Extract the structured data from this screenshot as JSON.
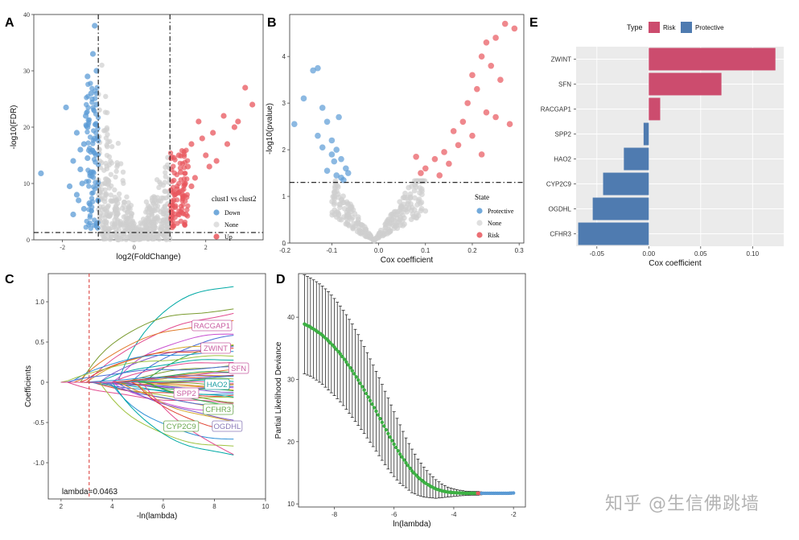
{
  "watermark": "知乎 @生信佛跳墙",
  "chart_data": [
    {
      "panel": "A",
      "type": "scatter",
      "title": "",
      "xlabel": "log2(FoldChange)",
      "ylabel": "-log10(FDR)",
      "xlim": [
        -2.8,
        3.6
      ],
      "ylim": [
        0,
        40
      ],
      "xticks": [
        "-2",
        "0",
        "2"
      ],
      "xtick_values": [
        -2,
        0,
        2
      ],
      "yticks": [
        "0",
        "10",
        "20",
        "30",
        "40"
      ],
      "ytick_values": [
        0,
        10,
        20,
        30,
        40
      ],
      "vlines": [
        -1,
        1
      ],
      "hline": 1.3,
      "legend": {
        "title": "clust1 vs clust2",
        "entries": [
          "Down",
          "None",
          "Up"
        ],
        "colors": [
          "#5b9bd5",
          "#d9d9d9",
          "#e8565c"
        ],
        "position": "right"
      },
      "series": [
        {
          "name": "Down",
          "points": [
            [
              -2.6,
              11.8
            ],
            [
              -1.9,
              23.5
            ],
            [
              -1.5,
              12.5
            ],
            [
              -1.6,
              8
            ],
            [
              -1.4,
              17
            ],
            [
              -1.3,
              14.5
            ],
            [
              -1.2,
              26
            ],
            [
              -1.1,
              38
            ],
            [
              -1.05,
              30
            ],
            [
              -1.3,
              20
            ],
            [
              -1.7,
              14
            ],
            [
              -1.8,
              9.5
            ],
            [
              -1.45,
              10
            ],
            [
              -1.25,
              6.5
            ],
            [
              -1.15,
              33
            ],
            [
              -1.5,
              16
            ],
            [
              -1.35,
              22
            ],
            [
              -1.6,
              19
            ],
            [
              -1.1,
              18
            ],
            [
              -1.2,
              12
            ],
            [
              -1.4,
              5.5
            ],
            [
              -1.7,
              4.5
            ],
            [
              -1.05,
              24
            ],
            [
              -1.3,
              29
            ],
            [
              -1.55,
              7
            ]
          ]
        },
        {
          "name": "Up",
          "points": [
            [
              3.3,
              24
            ],
            [
              2.8,
              20
            ],
            [
              2.5,
              22
            ],
            [
              2.2,
              19
            ],
            [
              3.1,
              27
            ],
            [
              1.8,
              21
            ],
            [
              1.6,
              17
            ],
            [
              2.0,
              15
            ],
            [
              1.5,
              13
            ],
            [
              1.3,
              12
            ],
            [
              1.2,
              9
            ],
            [
              1.1,
              7
            ],
            [
              1.4,
              10
            ],
            [
              1.7,
              11
            ],
            [
              2.3,
              14
            ],
            [
              2.6,
              17
            ],
            [
              1.9,
              18
            ],
            [
              1.25,
              15
            ],
            [
              1.15,
              6
            ],
            [
              1.35,
              8
            ],
            [
              1.05,
              5.5
            ],
            [
              2.1,
              13
            ],
            [
              1.45,
              4.5
            ],
            [
              2.9,
              21
            ],
            [
              1.6,
              9.5
            ]
          ]
        }
      ]
    },
    {
      "panel": "B",
      "type": "scatter",
      "title": "",
      "xlabel": "Cox coefficient",
      "ylabel": "-log10(pvalue)",
      "xlim": [
        -0.19,
        0.31
      ],
      "ylim": [
        0,
        4.9
      ],
      "xticks": [
        "-0.2",
        "-0.1",
        "0.0",
        "0.1",
        "0.2",
        "0.3"
      ],
      "xtick_values": [
        -0.2,
        -0.1,
        0.0,
        0.1,
        0.2,
        0.3
      ],
      "yticks": [
        "0",
        "1",
        "2",
        "3",
        "4"
      ],
      "ytick_values": [
        0,
        1,
        2,
        3,
        4
      ],
      "hline": 1.3,
      "legend": {
        "title": "State",
        "entries": [
          "Protective",
          "None",
          "Risk"
        ],
        "colors": [
          "#5b9bd5",
          "#d9d9d9",
          "#e8565c"
        ],
        "position": "bottom-right"
      },
      "series": [
        {
          "name": "Protective",
          "points": [
            [
              -0.18,
              2.55
            ],
            [
              -0.16,
              3.1
            ],
            [
              -0.14,
              3.7
            ],
            [
              -0.13,
              3.75
            ],
            [
              -0.12,
              2.9
            ],
            [
              -0.11,
              2.6
            ],
            [
              -0.1,
              2.2
            ],
            [
              -0.09,
              2.0
            ],
            [
              -0.08,
              1.8
            ],
            [
              -0.07,
              1.6
            ],
            [
              -0.11,
              1.55
            ],
            [
              -0.09,
              1.45
            ],
            [
              -0.08,
              1.4
            ],
            [
              -0.1,
              1.9
            ],
            [
              -0.13,
              2.3
            ],
            [
              -0.085,
              2.7
            ],
            [
              -0.075,
              1.35
            ],
            [
              -0.095,
              1.75
            ],
            [
              -0.12,
              2.05
            ],
            [
              -0.065,
              1.5
            ]
          ]
        },
        {
          "name": "Risk",
          "points": [
            [
              0.27,
              4.7
            ],
            [
              0.29,
              4.6
            ],
            [
              0.25,
              4.4
            ],
            [
              0.23,
              4.3
            ],
            [
              0.22,
              4.0
            ],
            [
              0.2,
              3.6
            ],
            [
              0.24,
              3.8
            ],
            [
              0.21,
              3.3
            ],
            [
              0.19,
              3.0
            ],
            [
              0.23,
              2.8
            ],
            [
              0.18,
              2.6
            ],
            [
              0.16,
              2.4
            ],
            [
              0.17,
              2.1
            ],
            [
              0.14,
              1.95
            ],
            [
              0.12,
              1.8
            ],
            [
              0.1,
              1.6
            ],
            [
              0.09,
              1.5
            ],
            [
              0.15,
              1.7
            ],
            [
              0.2,
              2.3
            ],
            [
              0.25,
              2.7
            ],
            [
              0.28,
              2.55
            ],
            [
              0.22,
              1.9
            ],
            [
              0.13,
              1.45
            ],
            [
              0.08,
              1.85
            ],
            [
              0.26,
              3.5
            ]
          ]
        }
      ]
    },
    {
      "panel": "C",
      "type": "line",
      "title": "",
      "xlabel": "-ln(lambda)",
      "ylabel": "Coefficients",
      "xlim": [
        1.5,
        10
      ],
      "ylim": [
        -1.45,
        1.35
      ],
      "xticks": [
        "2",
        "4",
        "6",
        "8",
        "10"
      ],
      "xtick_values": [
        2,
        4,
        6,
        8,
        10
      ],
      "yticks": [
        "-1.0",
        "-0.5",
        "0",
        "0.5",
        "1.0"
      ],
      "ytick_values": [
        -1.0,
        -0.5,
        0,
        0.5,
        1.0
      ],
      "vline": 3.1,
      "annotation": "lambda=0.0463",
      "end_values": [
        1.27,
        1.02,
        0.93,
        0.82,
        0.71,
        0.64,
        0.57,
        0.51,
        0.47,
        0.42,
        0.38,
        0.35,
        0.31,
        0.28,
        0.25,
        0.22,
        0.19,
        0.17,
        0.15,
        0.12,
        0.1,
        0.08,
        0.06,
        0.04,
        0.02,
        0.0,
        -0.02,
        -0.04,
        -0.07,
        -0.09,
        -0.11,
        -0.13,
        -0.15,
        -0.17,
        -0.19,
        -0.21,
        -0.24,
        -0.27,
        -0.3,
        -0.33,
        -0.37,
        -0.42,
        -0.47,
        -0.53,
        -0.6,
        -0.68,
        -0.77,
        -0.85,
        -1.0,
        -1.32
      ],
      "labels": [
        {
          "text": "RACGAP1",
          "x": 7.9,
          "y": 0.7,
          "color": "#c95fa2"
        },
        {
          "text": "ZWINT",
          "x": 8.05,
          "y": 0.42,
          "color": "#c95fa2"
        },
        {
          "text": "SFN",
          "x": 8.95,
          "y": 0.17,
          "color": "#c95fa2"
        },
        {
          "text": "HAO2",
          "x": 8.1,
          "y": -0.03,
          "color": "#1f9fa5"
        },
        {
          "text": "SPP2",
          "x": 6.9,
          "y": -0.14,
          "color": "#c95fa2"
        },
        {
          "text": "CFHR3",
          "x": 8.15,
          "y": -0.34,
          "color": "#6aa84f"
        },
        {
          "text": "CYP2C9",
          "x": 6.7,
          "y": -0.55,
          "color": "#6aa84f"
        },
        {
          "text": "OGDHL",
          "x": 8.5,
          "y": -0.55,
          "color": "#8a7ab8"
        }
      ]
    },
    {
      "panel": "D",
      "type": "line",
      "title": "",
      "xlabel": "ln(lambda)",
      "ylabel": "Partial Likelihood Deviance",
      "xlim": [
        -9.2,
        -1.6
      ],
      "ylim": [
        9.5,
        47
      ],
      "xticks": [
        "-8",
        "-6",
        "-4",
        "-2"
      ],
      "xtick_values": [
        -8,
        -6,
        -4,
        -2
      ],
      "yticks": [
        "10",
        "20",
        "30",
        "40"
      ],
      "ytick_values": [
        10,
        20,
        30,
        40
      ],
      "x": [
        -9.0,
        -8.8,
        -8.6,
        -8.4,
        -8.2,
        -8.0,
        -7.8,
        -7.6,
        -7.4,
        -7.2,
        -7.0,
        -6.8,
        -6.6,
        -6.4,
        -6.2,
        -6.0,
        -5.8,
        -5.6,
        -5.4,
        -5.2,
        -5.0,
        -4.8,
        -4.6,
        -4.4,
        -4.2,
        -4.0,
        -3.8,
        -3.6,
        -3.4,
        -3.2,
        -3.0,
        -2.8,
        -2.6,
        -2.4,
        -2.2,
        -2.0
      ],
      "y": [
        38.9,
        38.4,
        37.8,
        37.1,
        36.2,
        35.2,
        34.1,
        32.8,
        31.4,
        29.9,
        28.3,
        26.6,
        24.9,
        23.1,
        21.3,
        19.6,
        18.0,
        16.6,
        15.3,
        14.3,
        13.5,
        12.9,
        12.4,
        12.1,
        11.9,
        11.8,
        11.75,
        11.7,
        11.7,
        11.7,
        11.7,
        11.7,
        11.7,
        11.7,
        11.7,
        11.75
      ],
      "err_hi": [
        46.8,
        46.3,
        45.7,
        45.0,
        44.1,
        43.0,
        41.8,
        40.4,
        38.9,
        37.2,
        35.3,
        33.3,
        31.3,
        29.2,
        27.0,
        24.8,
        22.7,
        20.6,
        18.8,
        17.2,
        15.9,
        14.8,
        13.9,
        13.2,
        12.7,
        12.4,
        12.2,
        12.05,
        12.0,
        12.0,
        11.9,
        11.9,
        11.9,
        11.9,
        11.9,
        11.95
      ],
      "err_lo": [
        30.9,
        30.5,
        29.9,
        29.2,
        28.3,
        27.4,
        26.4,
        25.2,
        23.9,
        22.6,
        21.3,
        19.9,
        18.5,
        17.0,
        15.6,
        14.4,
        13.3,
        12.6,
        11.8,
        11.4,
        11.1,
        11.0,
        10.9,
        11.0,
        11.1,
        11.2,
        11.3,
        11.35,
        11.4,
        11.4,
        11.5,
        11.5,
        11.5,
        11.5,
        11.5,
        11.55
      ],
      "point_colors": {
        "path": "#3cb043",
        "min": "#e8565c",
        "tail": "#5b9bd5"
      }
    },
    {
      "panel": "E",
      "type": "bar",
      "title": "",
      "xlabel": "Cox coefficient",
      "ylabel": "",
      "xlim": [
        -0.07,
        0.13
      ],
      "xticks": [
        "-0.05",
        "0.00",
        "0.05",
        "0.10"
      ],
      "xtick_values": [
        -0.05,
        0.0,
        0.05,
        0.1
      ],
      "categories": [
        "ZWINT",
        "SFN",
        "RACGAP1",
        "SPP2",
        "HAO2",
        "CYP2C9",
        "OGDHL",
        "CFHR3"
      ],
      "values": [
        0.122,
        0.07,
        0.011,
        -0.005,
        -0.024,
        -0.044,
        -0.054,
        -0.068
      ],
      "types": [
        "Risk",
        "Risk",
        "Risk",
        "Protective",
        "Protective",
        "Protective",
        "Protective",
        "Protective"
      ],
      "legend": {
        "title": "Type",
        "entries": [
          "Risk",
          "Protective"
        ],
        "colors": [
          "#cc4c6e",
          "#4f7bb0"
        ],
        "position": "top"
      }
    }
  ]
}
